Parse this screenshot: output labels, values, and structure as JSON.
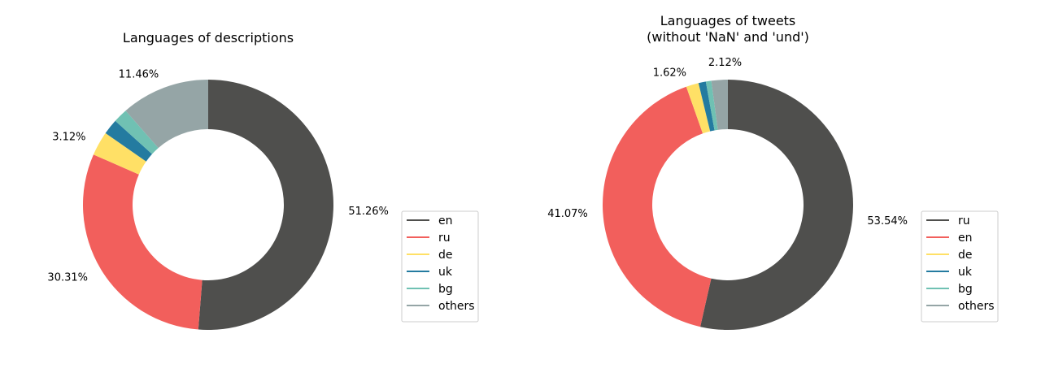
{
  "chart_data": [
    {
      "type": "pie",
      "style": "donut",
      "title": "Languages of descriptions",
      "labels": [
        "en",
        "ru",
        "de",
        "uk",
        "bg",
        "others"
      ],
      "values": [
        51.26,
        30.31,
        3.12,
        2.0,
        1.85,
        11.46
      ],
      "colors": [
        "#4f4f4d",
        "#f25f5c",
        "#ffe066",
        "#247ba0",
        "#70c1b3",
        "#95a5a6"
      ],
      "pct_labels": [
        "51.26%",
        "30.31%",
        "3.12%",
        "",
        "",
        "11.46%"
      ],
      "legend_position": "right"
    },
    {
      "type": "pie",
      "style": "donut",
      "title": "Languages of tweets\n(without 'NaN' and 'und')",
      "labels": [
        "ru",
        "en",
        "de",
        "uk",
        "bg",
        "others"
      ],
      "values": [
        53.54,
        41.07,
        1.62,
        0.95,
        0.7,
        2.12
      ],
      "colors": [
        "#4f4f4d",
        "#f25f5c",
        "#ffe066",
        "#247ba0",
        "#70c1b3",
        "#95a5a6"
      ],
      "pct_labels": [
        "53.54%",
        "41.07%",
        "1.62%",
        "",
        "",
        "2.12%"
      ],
      "legend_position": "right"
    }
  ]
}
